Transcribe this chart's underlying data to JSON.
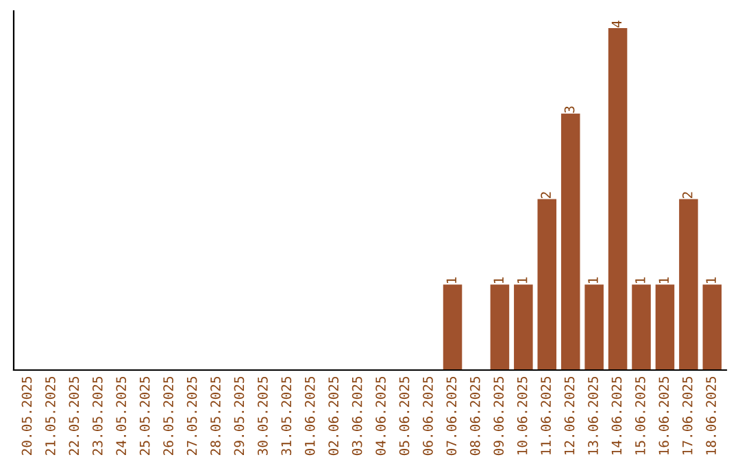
{
  "chart_data": {
    "type": "bar",
    "categories": [
      "20.05.2025",
      "21.05.2025",
      "22.05.2025",
      "23.05.2025",
      "24.05.2025",
      "25.05.2025",
      "26.05.2025",
      "27.05.2025",
      "28.05.2025",
      "29.05.2025",
      "30.05.2025",
      "31.05.2025",
      "01.06.2025",
      "02.06.2025",
      "03.06.2025",
      "04.06.2025",
      "05.06.2025",
      "06.06.2025",
      "07.06.2025",
      "08.06.2025",
      "09.06.2025",
      "10.06.2025",
      "11.06.2025",
      "12.06.2025",
      "13.06.2025",
      "14.06.2025",
      "15.06.2025",
      "16.06.2025",
      "17.06.2025",
      "18.06.2025"
    ],
    "values": [
      null,
      null,
      null,
      null,
      null,
      null,
      null,
      null,
      null,
      null,
      null,
      null,
      null,
      null,
      null,
      null,
      null,
      null,
      1,
      null,
      1,
      1,
      2,
      3,
      1,
      4,
      1,
      1,
      2,
      1
    ],
    "data_labels": true,
    "color": "#a0522d",
    "grid": false,
    "legend": false
  }
}
